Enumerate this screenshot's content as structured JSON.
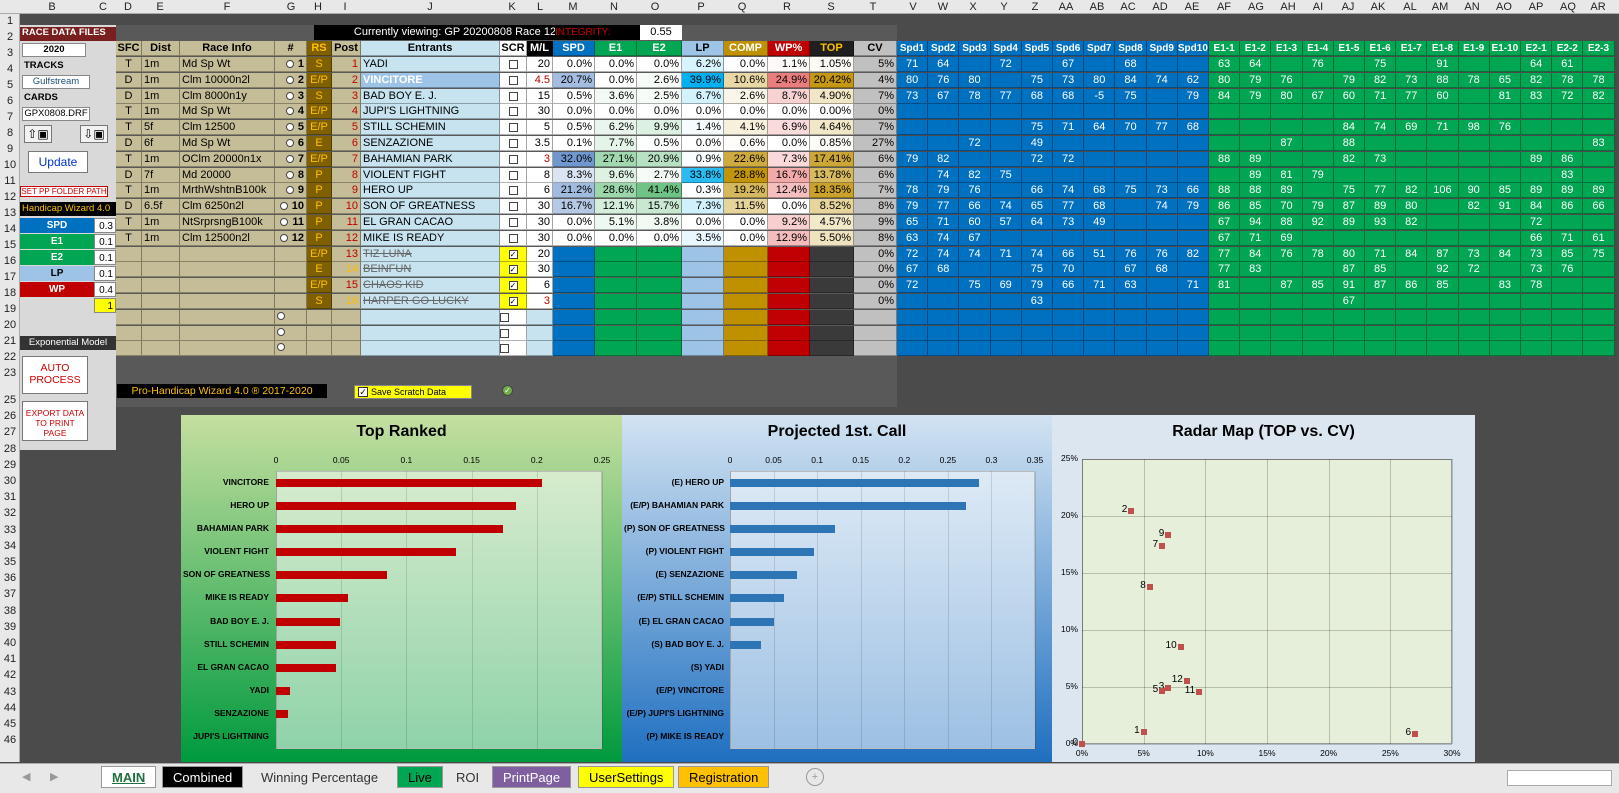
{
  "viewing": "Currently viewing: GP 20200808 Race 12",
  "integrity_label": "INTEGRITY:",
  "integrity_value": "0.55",
  "col_letters": [
    "B",
    "C",
    "D",
    "E",
    "F",
    "G",
    "H",
    "I",
    "J",
    "K",
    "L",
    "M",
    "N",
    "O",
    "P",
    "Q",
    "R",
    "S",
    "T",
    "V",
    "W",
    "X",
    "Y",
    "Z",
    "AA",
    "AB",
    "AC",
    "AD",
    "AE",
    "AF",
    "AG",
    "AH",
    "AI",
    "AJ",
    "AK",
    "AL",
    "AM",
    "AN",
    "AO",
    "AP",
    "AQ",
    "AR"
  ],
  "row_numbers": [
    "1",
    "2",
    "3",
    "4",
    "5",
    "6",
    "7",
    "8",
    "9",
    "10",
    "11",
    "12",
    "13",
    "14",
    "15",
    "16",
    "17",
    "18",
    "19",
    "20",
    "21",
    "22",
    "23",
    "25",
    "26",
    "27",
    "28",
    "29",
    "30",
    "31",
    "32",
    "33",
    "34",
    "35",
    "36",
    "37",
    "38",
    "39",
    "40",
    "41",
    "42",
    "43",
    "44",
    "45",
    "46"
  ],
  "left": {
    "race_data_files": "RACE DATA FILES",
    "year": "2020",
    "tracks": "TRACKS",
    "track": "Gulfstream",
    "cards": "CARDS",
    "card": "GPX0808.DRF",
    "update": "Update",
    "set_pp": "SET PP FOLDER PATH",
    "wizard": "Handicap Wizard 4.0",
    "weights": [
      {
        "label": "SPD",
        "value": "0.3"
      },
      {
        "label": "E1",
        "value": "0.1"
      },
      {
        "label": "E2",
        "value": "0.1"
      },
      {
        "label": "LP",
        "value": "0.1"
      },
      {
        "label": "WP",
        "value": "0.4"
      }
    ],
    "one": "1",
    "exp_model": "Exponential Model",
    "auto_process": "AUTO PROCESS",
    "export": "EXPORT DATA TO PRINT PAGE"
  },
  "headers": {
    "sfc": "SFC",
    "dist": "Dist",
    "race_info": "Race Info",
    "num": "#",
    "rs": "RS",
    "post": "Post",
    "entrants": "Entrants",
    "scr": "SCR",
    "ml": "M/L",
    "spd": "SPD",
    "e1": "E1",
    "e2": "E2",
    "lp": "LP",
    "comp": "COMP",
    "wp": "WP%",
    "top": "TOP",
    "cv": "CV",
    "spd_cols": [
      "Spd1",
      "Spd2",
      "Spd3",
      "Spd4",
      "Spd5",
      "Spd6",
      "Spd7",
      "Spd8",
      "Spd9",
      "Spd10"
    ],
    "e_cols": [
      "E1-1",
      "E1-2",
      "E1-3",
      "E1-4",
      "E1-5",
      "E1-6",
      "E1-7",
      "E1-8",
      "E1-9",
      "E1-10",
      "E2-1",
      "E2-2",
      "E2-3"
    ]
  },
  "rows": [
    {
      "sfc": "T",
      "dist": "1m",
      "info": "Md Sp Wt",
      "num": "1",
      "rs": "S",
      "post": "1",
      "name": "YADI",
      "ml": "20",
      "spd": "0.0%",
      "e1": "0.0%",
      "e2": "0.0%",
      "lp": "6.2%",
      "comp": "0.0%",
      "wp": "1.1%",
      "top": "1.05%",
      "cv": "5%",
      "s": [
        "71",
        "64",
        "",
        "72",
        "",
        "67",
        "",
        "68",
        "",
        ""
      ],
      "e": [
        "63",
        "64",
        "",
        "76",
        "",
        "75",
        "",
        "91",
        "",
        "",
        "64",
        "61",
        ""
      ]
    },
    {
      "sfc": "D",
      "dist": "1m",
      "info": "Clm 10000n2l",
      "num": "2",
      "rs": "E/P",
      "post": "2",
      "name": "VINCITORE",
      "ml": "4.5",
      "spd": "20.7%",
      "e1": "0.0%",
      "e2": "2.6%",
      "lp": "39.9%",
      "comp": "10.6%",
      "wp": "24.9%",
      "top": "20.42%",
      "cv": "4%",
      "s": [
        "80",
        "76",
        "80",
        "",
        "75",
        "73",
        "80",
        "84",
        "74",
        "62"
      ],
      "e": [
        "80",
        "79",
        "76",
        "",
        "79",
        "82",
        "73",
        "88",
        "78",
        "65",
        "82",
        "78",
        "78"
      ]
    },
    {
      "sfc": "D",
      "dist": "1m",
      "info": "Clm 8000n1y",
      "num": "3",
      "rs": "S",
      "post": "3",
      "name": "BAD BOY E. J.",
      "ml": "15",
      "spd": "0.5%",
      "e1": "3.6%",
      "e2": "2.5%",
      "lp": "6.7%",
      "comp": "2.6%",
      "wp": "8.7%",
      "top": "4.90%",
      "cv": "7%",
      "s": [
        "73",
        "67",
        "78",
        "77",
        "68",
        "68",
        "-5",
        "75",
        "",
        "79"
      ],
      "e": [
        "84",
        "79",
        "80",
        "67",
        "60",
        "71",
        "77",
        "60",
        "",
        "81",
        "83",
        "72",
        "82"
      ]
    },
    {
      "sfc": "T",
      "dist": "1m",
      "info": "Md Sp Wt",
      "num": "4",
      "rs": "E/P",
      "post": "4",
      "name": "JUPI'S LIGHTNING",
      "ml": "30",
      "spd": "0.0%",
      "e1": "0.0%",
      "e2": "0.0%",
      "lp": "0.0%",
      "comp": "0.0%",
      "wp": "0.0%",
      "top": "0.00%",
      "cv": "0%",
      "s": [
        "",
        "",
        "",
        "",
        "",
        "",
        "",
        "",
        "",
        ""
      ],
      "e": [
        "",
        "",
        "",
        "",
        "",
        "",
        "",
        "",
        "",
        "",
        "",
        "",
        ""
      ]
    },
    {
      "sfc": "T",
      "dist": "5f",
      "info": "Clm 12500",
      "num": "5",
      "rs": "E/P",
      "post": "5",
      "name": "STILL SCHEMIN",
      "ml": "5",
      "spd": "0.5%",
      "e1": "6.2%",
      "e2": "9.9%",
      "lp": "1.4%",
      "comp": "4.1%",
      "wp": "6.9%",
      "top": "4.64%",
      "cv": "7%",
      "s": [
        "",
        "",
        "",
        "",
        "75",
        "71",
        "64",
        "70",
        "77",
        "68"
      ],
      "e": [
        "",
        "",
        "",
        "",
        "84",
        "74",
        "69",
        "71",
        "98",
        "76",
        "",
        "",
        ""
      ]
    },
    {
      "sfc": "D",
      "dist": "6f",
      "info": "Md Sp Wt",
      "num": "6",
      "rs": "E",
      "post": "6",
      "name": "SENZAZIONE",
      "ml": "3.5",
      "spd": "0.1%",
      "e1": "7.7%",
      "e2": "0.5%",
      "lp": "0.0%",
      "comp": "0.6%",
      "wp": "0.0%",
      "top": "0.85%",
      "cv": "27%",
      "s": [
        "",
        "",
        "72",
        "",
        "49",
        "",
        "",
        "",
        "",
        ""
      ],
      "e": [
        "",
        "",
        "87",
        "",
        "88",
        "",
        "",
        "",
        "",
        "",
        "",
        "",
        "83"
      ]
    },
    {
      "sfc": "T",
      "dist": "1m",
      "info": "OClm 20000n1x",
      "num": "7",
      "rs": "E/P",
      "post": "7",
      "name": "BAHAMIAN PARK",
      "ml": "3",
      "spd": "32.0%",
      "e1": "27.1%",
      "e2": "20.9%",
      "lp": "0.9%",
      "comp": "22.6%",
      "wp": "7.3%",
      "top": "17.41%",
      "cv": "6%",
      "s": [
        "79",
        "82",
        "",
        "",
        "72",
        "72",
        "",
        "",
        "",
        ""
      ],
      "e": [
        "88",
        "89",
        "",
        "",
        "82",
        "73",
        "",
        "",
        "",
        "",
        "89",
        "86",
        ""
      ]
    },
    {
      "sfc": "D",
      "dist": "7f",
      "info": "Md 20000",
      "num": "8",
      "rs": "P",
      "post": "8",
      "name": "VIOLENT FIGHT",
      "ml": "8",
      "spd": "8.3%",
      "e1": "9.6%",
      "e2": "2.7%",
      "lp": "33.8%",
      "comp": "28.8%",
      "wp": "16.7%",
      "top": "13.78%",
      "cv": "6%",
      "s": [
        "",
        "74",
        "82",
        "75",
        "",
        "",
        "",
        "",
        "",
        ""
      ],
      "e": [
        "",
        "89",
        "81",
        "79",
        "",
        "",
        "",
        "",
        "",
        "",
        "",
        "83",
        ""
      ]
    },
    {
      "sfc": "T",
      "dist": "1m",
      "info": "MrthWshtnB100k",
      "num": "9",
      "rs": "P",
      "post": "9",
      "name": "HERO UP",
      "ml": "6",
      "spd": "21.2%",
      "e1": "28.6%",
      "e2": "41.4%",
      "lp": "0.3%",
      "comp": "19.2%",
      "wp": "12.4%",
      "top": "18.35%",
      "cv": "7%",
      "s": [
        "78",
        "79",
        "76",
        "",
        "66",
        "74",
        "68",
        "75",
        "73",
        "66"
      ],
      "e": [
        "88",
        "88",
        "89",
        "",
        "75",
        "77",
        "82",
        "106",
        "90",
        "85",
        "89",
        "89",
        "89"
      ]
    },
    {
      "sfc": "D",
      "dist": "6.5f",
      "info": "Clm 6250n2l",
      "num": "10",
      "rs": "P",
      "post": "10",
      "name": "SON OF GREATNESS",
      "ml": "30",
      "spd": "16.7%",
      "e1": "12.1%",
      "e2": "15.7%",
      "lp": "7.3%",
      "comp": "11.5%",
      "wp": "0.0%",
      "top": "8.52%",
      "cv": "8%",
      "s": [
        "79",
        "77",
        "66",
        "74",
        "65",
        "77",
        "68",
        "",
        "74",
        "79"
      ],
      "e": [
        "86",
        "85",
        "70",
        "79",
        "87",
        "89",
        "80",
        "",
        "82",
        "91",
        "84",
        "86",
        "66"
      ]
    },
    {
      "sfc": "T",
      "dist": "1m",
      "info": "NtSrprsngB100k",
      "num": "11",
      "rs": "P",
      "post": "11",
      "name": "EL GRAN CACAO",
      "ml": "30",
      "spd": "0.0%",
      "e1": "5.1%",
      "e2": "3.8%",
      "lp": "0.0%",
      "comp": "0.0%",
      "wp": "9.2%",
      "top": "4.57%",
      "cv": "9%",
      "s": [
        "65",
        "71",
        "60",
        "57",
        "64",
        "73",
        "49",
        "",
        "",
        ""
      ],
      "e": [
        "67",
        "94",
        "88",
        "92",
        "89",
        "93",
        "82",
        "",
        "",
        "",
        "72",
        "",
        ""
      ]
    },
    {
      "sfc": "T",
      "dist": "1m",
      "info": "Clm 12500n2l",
      "num": "12",
      "rs": "P",
      "post": "12",
      "name": "MIKE IS READY",
      "ml": "30",
      "spd": "0.0%",
      "e1": "0.0%",
      "e2": "0.0%",
      "lp": "3.5%",
      "comp": "0.0%",
      "wp": "12.9%",
      "top": "5.50%",
      "cv": "8%",
      "s": [
        "63",
        "74",
        "67",
        "",
        "",
        "",
        "",
        "",
        "",
        ""
      ],
      "e": [
        "67",
        "71",
        "69",
        "",
        "",
        "",
        "",
        "",
        "",
        "",
        "66",
        "71",
        "61"
      ]
    },
    {
      "sfc": "",
      "dist": "",
      "info": "",
      "num": "",
      "rs": "E/P",
      "post": "13",
      "name": "TIZ LUNA",
      "scr": true,
      "ml": "20",
      "spd": "",
      "e1": "",
      "e2": "",
      "lp": "",
      "comp": "",
      "wp": "",
      "top": "",
      "cv": "0%",
      "s": [
        "72",
        "74",
        "74",
        "71",
        "74",
        "66",
        "51",
        "76",
        "76",
        "82"
      ],
      "e": [
        "77",
        "84",
        "76",
        "78",
        "80",
        "71",
        "84",
        "87",
        "73",
        "84",
        "73",
        "85",
        "75"
      ]
    },
    {
      "sfc": "",
      "dist": "",
      "info": "",
      "num": "",
      "rs": "E",
      "post": "14",
      "name": "BEINFUN",
      "scr": true,
      "ml": "30",
      "spd": "",
      "e1": "",
      "e2": "",
      "lp": "",
      "comp": "",
      "wp": "",
      "top": "",
      "cv": "0%",
      "s": [
        "67",
        "68",
        "",
        "",
        "75",
        "70",
        "",
        "67",
        "68",
        ""
      ],
      "e": [
        "77",
        "83",
        "",
        "",
        "87",
        "85",
        "",
        "92",
        "72",
        "",
        "73",
        "76",
        ""
      ]
    },
    {
      "sfc": "",
      "dist": "",
      "info": "",
      "num": "",
      "rs": "E/P",
      "post": "15",
      "name": "CHAOS KID",
      "scr": true,
      "ml": "6",
      "spd": "",
      "e1": "",
      "e2": "",
      "lp": "",
      "comp": "",
      "wp": "",
      "top": "",
      "cv": "0%",
      "s": [
        "72",
        "",
        "75",
        "69",
        "79",
        "66",
        "71",
        "63",
        "",
        "71"
      ],
      "e": [
        "81",
        "",
        "87",
        "85",
        "91",
        "87",
        "86",
        "85",
        "",
        "83",
        "78",
        "",
        ""
      ]
    },
    {
      "sfc": "",
      "dist": "",
      "info": "",
      "num": "",
      "rs": "S",
      "post": "16",
      "name": "HARPER GO LUCKY",
      "scr": true,
      "ml": "3",
      "spd": "",
      "e1": "",
      "e2": "",
      "lp": "",
      "comp": "",
      "wp": "",
      "top": "",
      "cv": "0%",
      "s": [
        "",
        "",
        "",
        "",
        "63",
        "",
        "",
        "",
        "",
        ""
      ],
      "e": [
        "",
        "",
        "",
        "",
        "67",
        "",
        "",
        "",
        "",
        "",
        "",
        "",
        ""
      ]
    }
  ],
  "footer_brand": "Pro-Handicap Wizard 4.0 ® 2017-2020",
  "save_scratch": "Save Scratch Data",
  "chart_data": [
    {
      "type": "bar",
      "title": "Top Ranked",
      "categories": [
        "VINCITORE",
        "HERO UP",
        "BAHAMIAN PARK",
        "VIOLENT FIGHT",
        "SON OF GREATNESS",
        "MIKE IS READY",
        "BAD BOY E. J.",
        "STILL SCHEMIN",
        "EL GRAN CACAO",
        "YADI",
        "SENZAZIONE",
        "JUPI'S LIGHTNING"
      ],
      "values": [
        0.204,
        0.184,
        0.174,
        0.138,
        0.085,
        0.055,
        0.049,
        0.046,
        0.046,
        0.011,
        0.009,
        0
      ],
      "xlim": [
        0,
        0.25
      ],
      "ticks": [
        "0",
        "0.05",
        "0.1",
        "0.15",
        "0.2",
        "0.25"
      ],
      "color": "#c00000"
    },
    {
      "type": "bar",
      "title": "Projected 1st. Call",
      "categories": [
        "(E) HERO UP",
        "(E/P) BAHAMIAN PARK",
        "(P) SON OF GREATNESS",
        "(P) VIOLENT FIGHT",
        "(E) SENZAZIONE",
        "(E/P) STILL SCHEMIN",
        "(E) EL GRAN CACAO",
        "(S) BAD BOY E. J.",
        "(S) YADI",
        "(E/P) VINCITORE",
        "(E/P) JUPI'S LIGHTNING",
        "(P) MIKE IS READY"
      ],
      "values": [
        0.286,
        0.271,
        0.121,
        0.096,
        0.077,
        0.062,
        0.051,
        0.036,
        0,
        0,
        0,
        0
      ],
      "xlim": [
        0,
        0.35
      ],
      "ticks": [
        "0",
        "0.05",
        "0.1",
        "0.15",
        "0.2",
        "0.25",
        "0.3",
        "0.35"
      ],
      "color": "#2e75b6"
    },
    {
      "type": "scatter",
      "title": "Radar Map (TOP vs. CV)",
      "x_ticks": [
        "0%",
        "5%",
        "10%",
        "15%",
        "20%",
        "25%",
        "30%"
      ],
      "y_ticks": [
        "0%",
        "5%",
        "10%",
        "15%",
        "20%",
        "25%"
      ],
      "xlim": [
        0,
        0.3
      ],
      "ylim": [
        0,
        0.25
      ],
      "points": [
        {
          "label": "1",
          "x": 0.05,
          "y": 0.0105
        },
        {
          "label": "2",
          "x": 0.04,
          "y": 0.2042
        },
        {
          "label": "3",
          "x": 0.07,
          "y": 0.049
        },
        {
          "label": "5",
          "x": 0.065,
          "y": 0.0464
        },
        {
          "label": "6",
          "x": 0.27,
          "y": 0.0085
        },
        {
          "label": "7",
          "x": 0.065,
          "y": 0.1741
        },
        {
          "label": "8",
          "x": 0.055,
          "y": 0.1378
        },
        {
          "label": "9",
          "x": 0.07,
          "y": 0.1835
        },
        {
          "label": "10",
          "x": 0.08,
          "y": 0.0852
        },
        {
          "label": "11",
          "x": 0.095,
          "y": 0.0457
        },
        {
          "label": "12",
          "x": 0.085,
          "y": 0.055
        },
        {
          "label": "0",
          "x": 0.0,
          "y": 0.0
        }
      ],
      "color": "#c0504d"
    }
  ],
  "tabs": [
    "MAIN",
    "Combined",
    "Winning Percentage",
    "Live",
    "ROI",
    "PrintPage",
    "UserSettings",
    "Registration"
  ]
}
